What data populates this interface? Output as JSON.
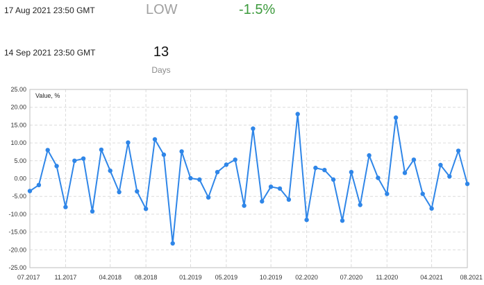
{
  "header": {
    "start_date": "17 Aug 2021 23:50 GMT",
    "end_date": "14 Sep 2021 23:50 GMT",
    "direction_label": "LOW",
    "change_value": "-1.5%",
    "duration_value": "13",
    "duration_unit": "Days",
    "colors": {
      "direction": "#a0a0a0",
      "change": "#3c9a3c"
    }
  },
  "chart_data": {
    "type": "line",
    "title": "",
    "xlabel": "",
    "ylabel": "",
    "legend_label": "Value, %",
    "legend_position": "top-left",
    "grid": true,
    "line_color": "#2f86e8",
    "ylim": [
      -25,
      25
    ],
    "y_ticks": [
      25,
      20,
      15,
      10,
      5,
      0,
      -5,
      -10,
      -15,
      -20,
      -25
    ],
    "y_tick_labels": [
      "25.00",
      "20.00",
      "15.00",
      "10.00",
      "5.00",
      "0.00",
      "-5.00",
      "-10.00",
      "-15.00",
      "-20.00",
      "-25.00"
    ],
    "xlim": [
      "2017-07",
      "2021-08"
    ],
    "x_ticks": [
      "2017-07",
      "2017-11",
      "2018-04",
      "2018-08",
      "2019-01",
      "2019-05",
      "2019-10",
      "2020-02",
      "2020-07",
      "2020-11",
      "2021-04",
      "2021-08"
    ],
    "x_tick_labels": [
      "07.2017",
      "11.2017",
      "04.2018",
      "08.2018",
      "01.2019",
      "05.2019",
      "10.2019",
      "02.2020",
      "07.2020",
      "11.2020",
      "04.2021",
      "08.2021"
    ],
    "series": [
      {
        "x": [
          "2017-07",
          "2017-08",
          "2017-09",
          "2017-10",
          "2017-11",
          "2017-12",
          "2018-01",
          "2018-02",
          "2018-03",
          "2018-04",
          "2018-05",
          "2018-06",
          "2018-07",
          "2018-08",
          "2018-09",
          "2018-10",
          "2018-11",
          "2018-12",
          "2019-01",
          "2019-02",
          "2019-03",
          "2019-04",
          "2019-05",
          "2019-06",
          "2019-07",
          "2019-08",
          "2019-09",
          "2019-10",
          "2019-11",
          "2019-12",
          "2020-01",
          "2020-02",
          "2020-03",
          "2020-04",
          "2020-05",
          "2020-06",
          "2020-07",
          "2020-08",
          "2020-09",
          "2020-10",
          "2020-11",
          "2020-12",
          "2021-01",
          "2021-02",
          "2021-03",
          "2021-04",
          "2021-05",
          "2021-06",
          "2021-07",
          "2021-08"
        ],
        "values": [
          -3.5,
          -1.8,
          8.0,
          3.5,
          -8.0,
          5.0,
          5.6,
          -9.2,
          8.1,
          2.2,
          -3.8,
          10.1,
          -3.6,
          -8.5,
          11.0,
          6.7,
          -18.2,
          7.6,
          0.1,
          -0.3,
          -5.3,
          1.8,
          3.9,
          5.3,
          -7.6,
          14.0,
          -6.4,
          -2.3,
          -2.8,
          -5.9,
          18.1,
          -11.6,
          3.0,
          2.4,
          -0.3,
          -11.8,
          1.8,
          -7.4,
          6.5,
          0.2,
          -4.3,
          17.1,
          1.6,
          5.3,
          -4.3,
          -8.4,
          3.8,
          0.6,
          7.8,
          -1.5
        ]
      }
    ]
  }
}
